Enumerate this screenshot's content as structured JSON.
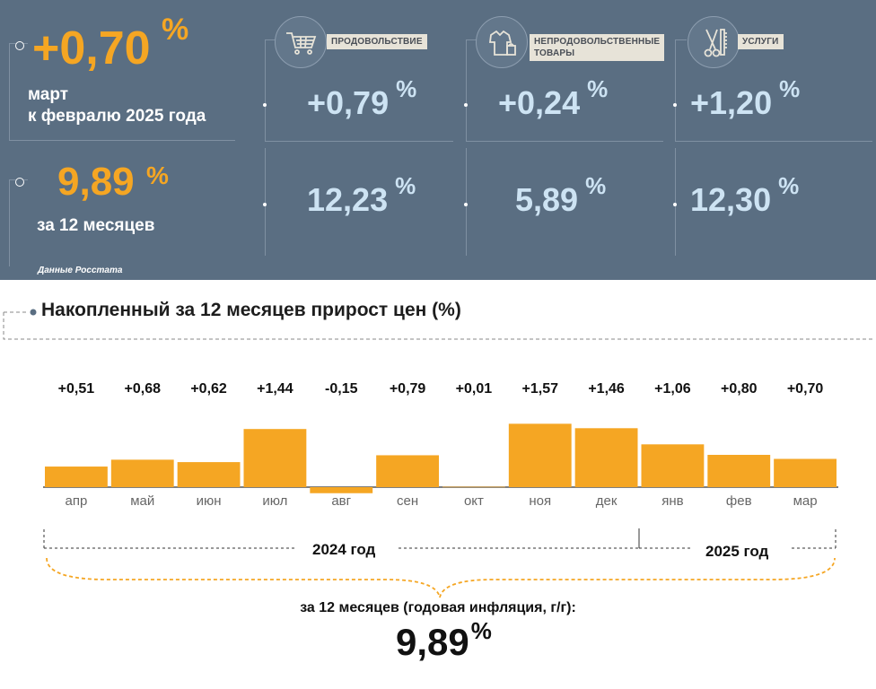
{
  "summary": {
    "monthly_value": "+0,70",
    "monthly_unit": "%",
    "monthly_label_1": "март",
    "monthly_label_2": "к февралю 2025 года",
    "annual_value": "9,89",
    "annual_unit": "%",
    "annual_label": "за 12 месяцев",
    "source": "Данные Росстата"
  },
  "categories": [
    {
      "tag_1": "ПРОДОВОЛЬСТВИЕ",
      "tag_2": "",
      "icon": "shopping-cart-icon",
      "monthly": "+0,79",
      "annual": "12,23",
      "unit": "%"
    },
    {
      "tag_1": "НЕПРОДОВОЛЬСТВЕННЫЕ",
      "tag_2": "ТОВАРЫ",
      "icon": "clothes-bag-icon",
      "monthly": "+0,24",
      "annual": "5,89",
      "unit": "%"
    },
    {
      "tag_1": "УСЛУГИ",
      "tag_2": "",
      "icon": "scissors-comb-icon",
      "monthly": "+1,20",
      "annual": "12,30",
      "unit": "%"
    }
  ],
  "colors": {
    "panel": "#5a6e82",
    "accent": "#f5a623",
    "value_text": "#cde3f3",
    "bar": "#f5a623"
  },
  "chart_data": {
    "type": "bar",
    "title": "Накопленный за 12 месяцев прирост цен (%)",
    "categories": [
      "апр",
      "май",
      "июн",
      "июл",
      "авг",
      "сен",
      "окт",
      "ноя",
      "дек",
      "янв",
      "фев",
      "мар"
    ],
    "values": [
      0.51,
      0.68,
      0.62,
      1.44,
      -0.15,
      0.79,
      0.01,
      1.57,
      1.46,
      1.06,
      0.8,
      0.7
    ],
    "value_labels": [
      "+0,51",
      "+0,68",
      "+0,62",
      "+1,44",
      "-0,15",
      "+0,79",
      "+0,01",
      "+1,57",
      "+1,46",
      "+1,06",
      "+0,80",
      "+0,70"
    ],
    "year_labels": [
      "2024 год",
      "2025 год"
    ],
    "annual_caption": "за 12 месяцев (годовая инфляция, г/г):",
    "annual_value": "9,89",
    "annual_unit": "%"
  }
}
